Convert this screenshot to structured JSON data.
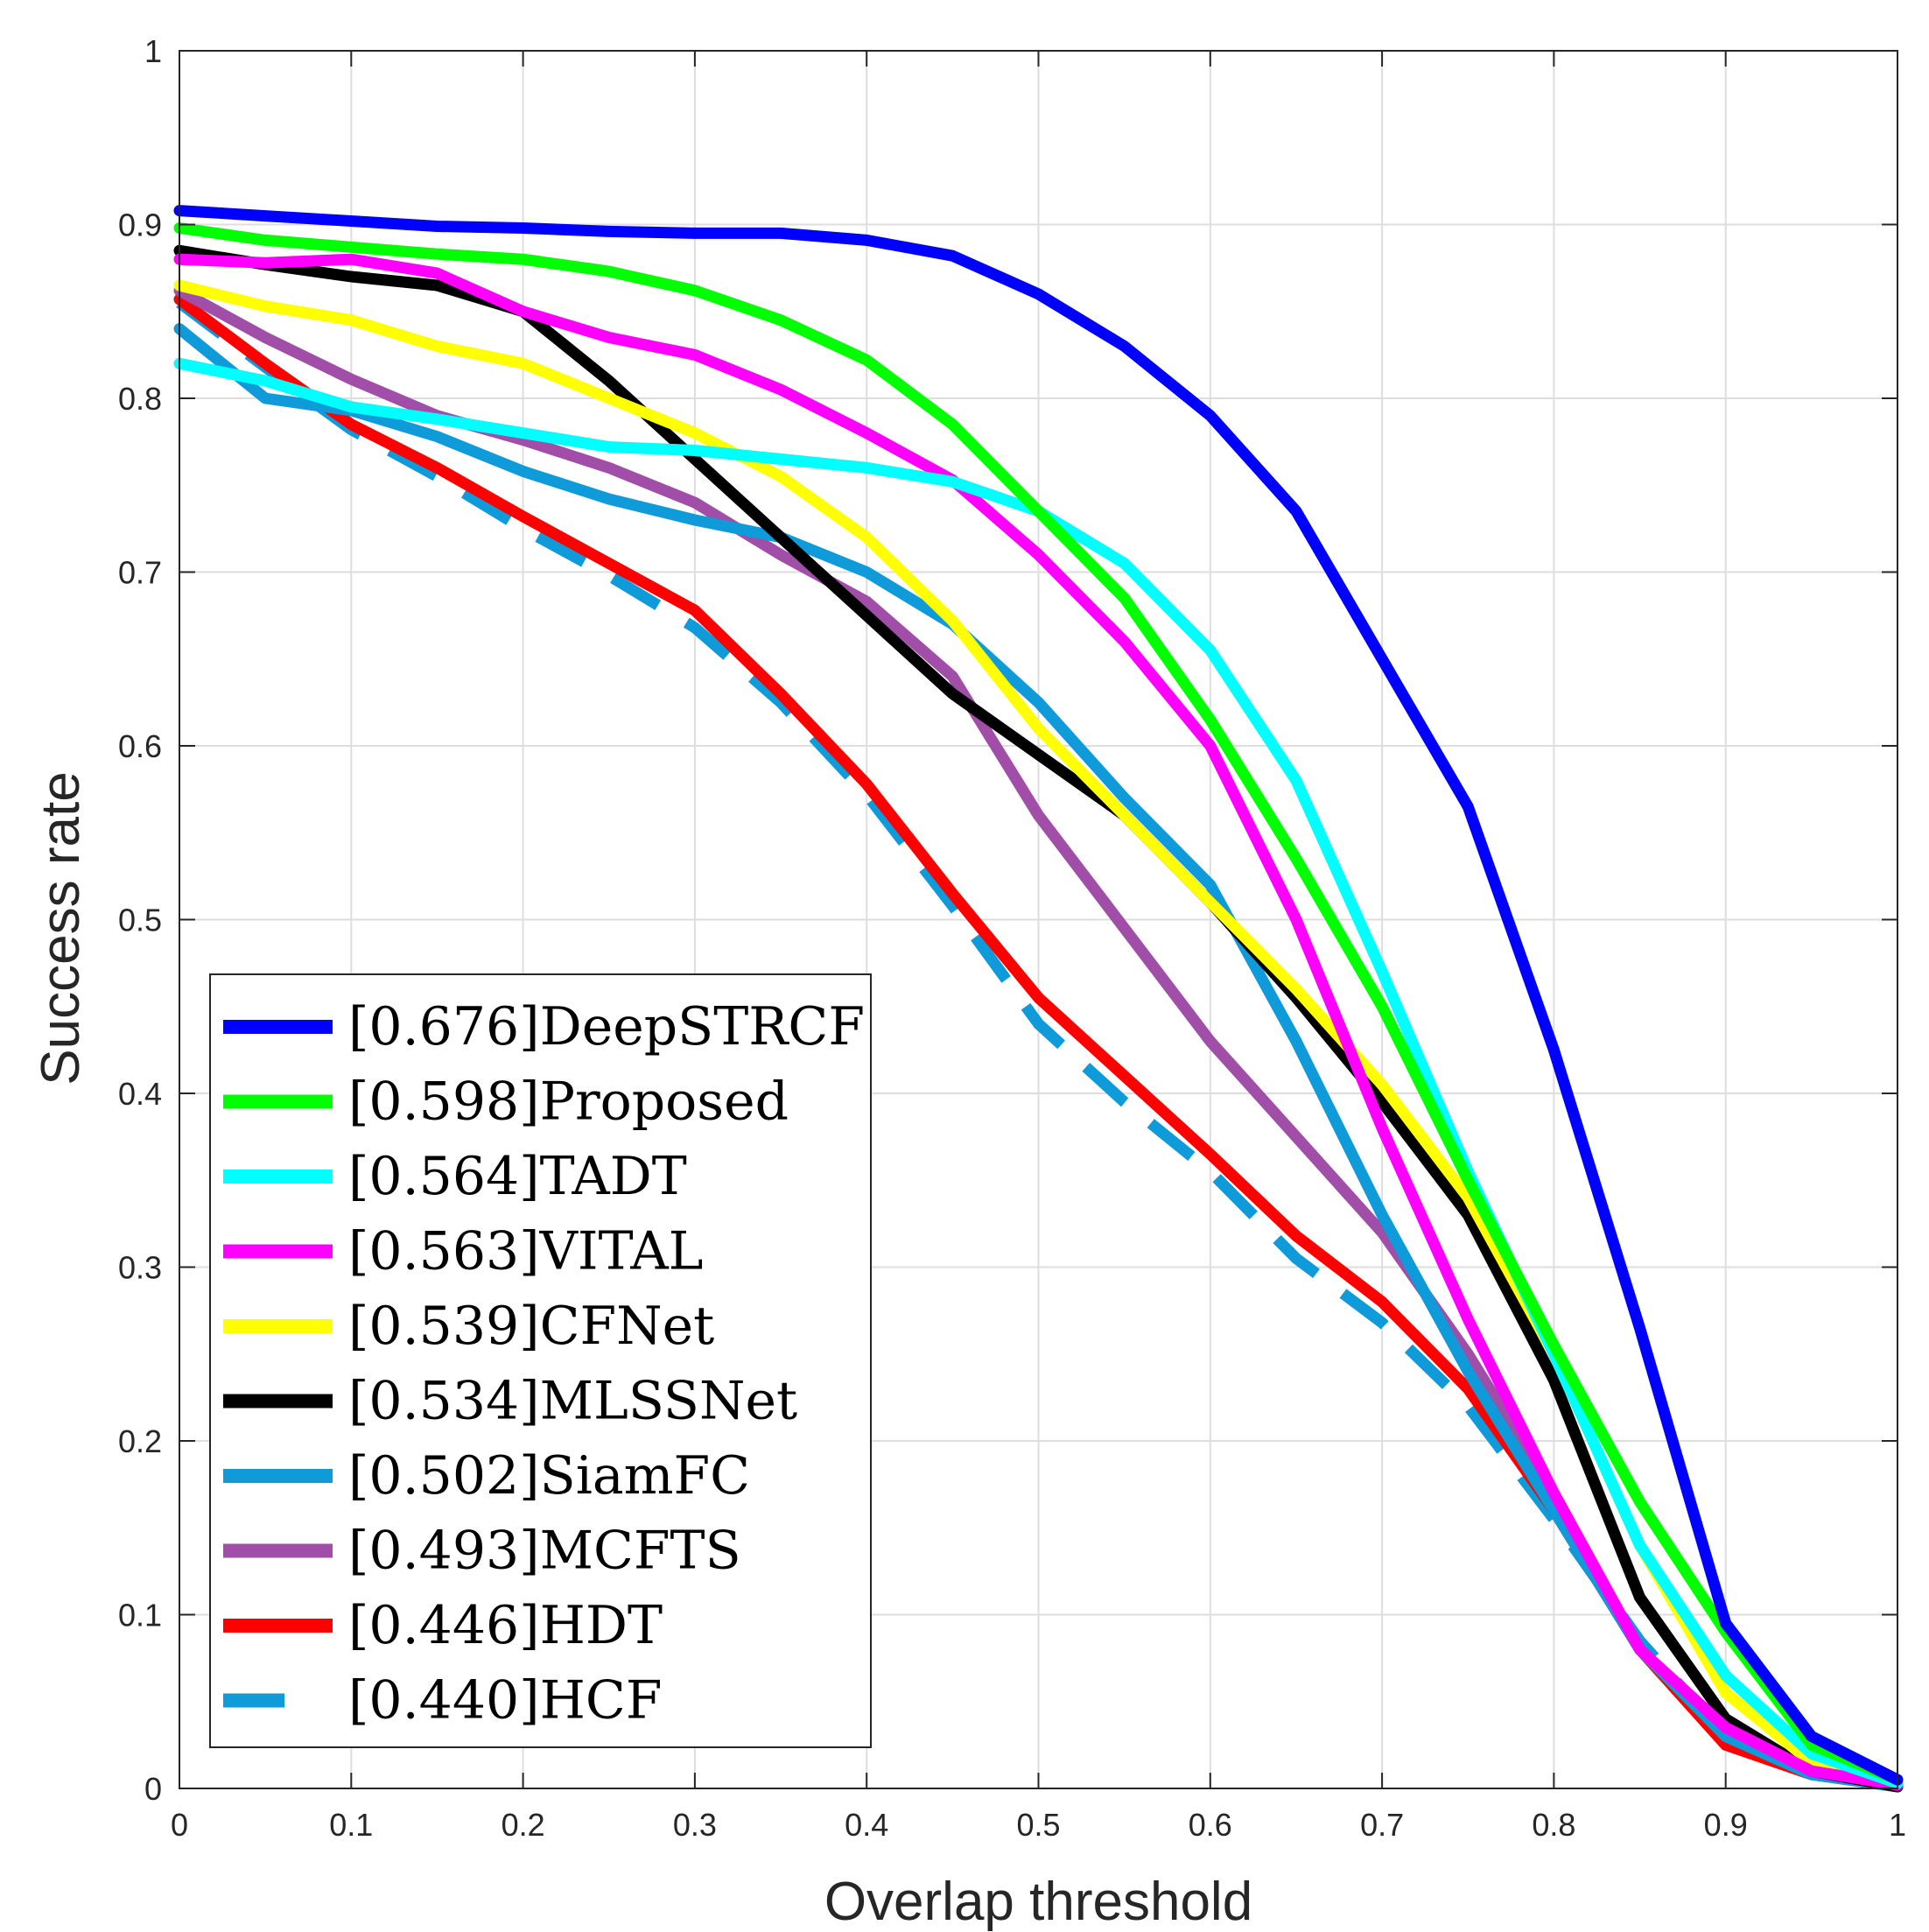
{
  "chart_data": {
    "type": "line",
    "title": "",
    "xlabel": "Overlap threshold",
    "ylabel": "Success rate",
    "xlim": [
      0,
      1
    ],
    "ylim": [
      0,
      1
    ],
    "grid": true,
    "legend_position": "bottom-left",
    "x": [
      0,
      0.05,
      0.1,
      0.15,
      0.2,
      0.25,
      0.3,
      0.35,
      0.4,
      0.45,
      0.5,
      0.55,
      0.6,
      0.65,
      0.7,
      0.75,
      0.8,
      0.85,
      0.9,
      0.95,
      1.0
    ],
    "xticks": [
      "0",
      "0.1",
      "0.2",
      "0.3",
      "0.4",
      "0.5",
      "0.6",
      "0.7",
      "0.8",
      "0.9",
      "1"
    ],
    "yticks": [
      "0",
      "0.1",
      "0.2",
      "0.3",
      "0.4",
      "0.5",
      "0.6",
      "0.7",
      "0.8",
      "0.9",
      "1"
    ],
    "series": [
      {
        "name": "DeepSTRCF",
        "legend": "[0.676]DeepSTRCF",
        "color": "#0000ff",
        "dash": "solid",
        "values": [
          0.908,
          0.905,
          0.902,
          0.899,
          0.898,
          0.896,
          0.895,
          0.895,
          0.891,
          0.882,
          0.86,
          0.83,
          0.79,
          0.735,
          0.65,
          0.565,
          0.425,
          0.265,
          0.095,
          0.03,
          0.005
        ]
      },
      {
        "name": "Proposed",
        "legend": "[0.598]Proposed",
        "color": "#00ff00",
        "dash": "solid",
        "values": [
          0.898,
          0.891,
          0.887,
          0.883,
          0.88,
          0.873,
          0.862,
          0.845,
          0.822,
          0.785,
          0.735,
          0.685,
          0.615,
          0.535,
          0.45,
          0.35,
          0.255,
          0.165,
          0.09,
          0.025,
          0.005
        ]
      },
      {
        "name": "TADT",
        "legend": "[0.564]TADT",
        "color": "#00ffff",
        "dash": "solid",
        "values": [
          0.82,
          0.81,
          0.795,
          0.788,
          0.78,
          0.772,
          0.77,
          0.765,
          0.76,
          0.752,
          0.735,
          0.705,
          0.655,
          0.58,
          0.47,
          0.355,
          0.25,
          0.14,
          0.065,
          0.02,
          0.003
        ]
      },
      {
        "name": "VITAL",
        "legend": "[0.563]VITAL",
        "color": "#ff00ff",
        "dash": "solid",
        "values": [
          0.88,
          0.878,
          0.88,
          0.872,
          0.85,
          0.835,
          0.825,
          0.805,
          0.78,
          0.753,
          0.71,
          0.66,
          0.6,
          0.5,
          0.38,
          0.27,
          0.17,
          0.08,
          0.035,
          0.01,
          0.002
        ]
      },
      {
        "name": "CFNet",
        "legend": "[0.539]CFNet",
        "color": "#ffff00",
        "dash": "solid",
        "values": [
          0.865,
          0.853,
          0.845,
          0.83,
          0.82,
          0.8,
          0.78,
          0.755,
          0.72,
          0.672,
          0.61,
          0.56,
          0.51,
          0.46,
          0.405,
          0.34,
          0.25,
          0.14,
          0.055,
          0.015,
          0.002
        ]
      },
      {
        "name": "MLSSNet",
        "legend": "[0.534]MLSSNet",
        "color": "#000000",
        "dash": "solid",
        "values": [
          0.885,
          0.877,
          0.87,
          0.865,
          0.85,
          0.81,
          0.765,
          0.72,
          0.675,
          0.63,
          0.595,
          0.56,
          0.51,
          0.455,
          0.395,
          0.33,
          0.235,
          0.11,
          0.04,
          0.01,
          0.001
        ]
      },
      {
        "name": "SiamFC",
        "legend": "[0.502]SiamFC",
        "color": "#0f9ad9",
        "dash": "solid",
        "values": [
          0.84,
          0.8,
          0.793,
          0.778,
          0.758,
          0.742,
          0.73,
          0.72,
          0.7,
          0.67,
          0.625,
          0.57,
          0.52,
          0.43,
          0.33,
          0.24,
          0.16,
          0.08,
          0.03,
          0.008,
          0.001
        ]
      },
      {
        "name": "MCFTS",
        "legend": "[0.493]MCFTS",
        "color": "#a04ea8",
        "dash": "solid",
        "values": [
          0.862,
          0.835,
          0.811,
          0.79,
          0.776,
          0.76,
          0.74,
          0.71,
          0.683,
          0.64,
          0.56,
          0.495,
          0.43,
          0.375,
          0.32,
          0.25,
          0.17,
          0.08,
          0.03,
          0.008,
          0.001
        ]
      },
      {
        "name": "HDT",
        "legend": "[0.446]HDT",
        "color": "#ff0000",
        "dash": "solid",
        "values": [
          0.857,
          0.82,
          0.785,
          0.76,
          0.732,
          0.705,
          0.678,
          0.63,
          0.578,
          0.515,
          0.455,
          0.41,
          0.365,
          0.318,
          0.28,
          0.23,
          0.16,
          0.08,
          0.025,
          0.008,
          0.001
        ]
      },
      {
        "name": "HCF",
        "legend": "[0.440]HCF",
        "color": "#0f9ad9",
        "dash": "dashed",
        "values": [
          0.855,
          0.818,
          0.782,
          0.755,
          0.725,
          0.698,
          0.668,
          0.625,
          0.572,
          0.508,
          0.44,
          0.395,
          0.355,
          0.305,
          0.268,
          0.22,
          0.155,
          0.085,
          0.03,
          0.01,
          0.001
        ]
      }
    ]
  }
}
